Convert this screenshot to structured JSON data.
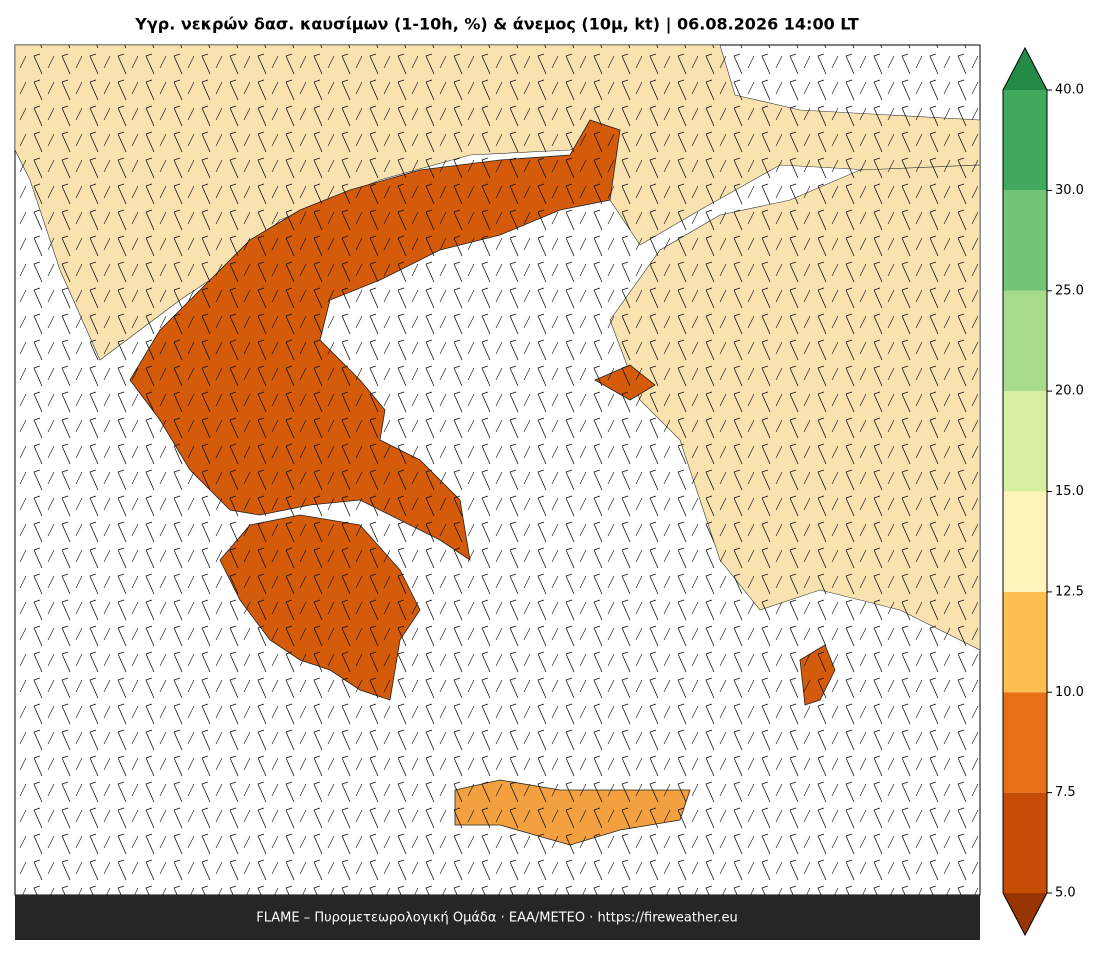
{
  "header": {
    "title": "Υγρ. νεκρών δασ. καυσίμων (1-10h, %) & άνεμος (10μ, kt)  |  06.08.2026 14:00 LT"
  },
  "colorbar": {
    "ticks": [
      {
        "value": 5,
        "label": "5.0"
      },
      7.5,
      {
        "value": 10,
        "label": "10.0"
      },
      12.5,
      {
        "value": 15,
        "label": "15.0"
      },
      {
        "value": 20,
        "label": "20.0"
      },
      {
        "value": 25,
        "label": "25.0"
      },
      {
        "value": 30,
        "label": "30.0"
      },
      {
        "value": 40,
        "label": "40.0"
      }
    ],
    "colors": [
      "#c74c05",
      "#e96f16",
      "#fdc050",
      "#fff5bb",
      "#d8eea0",
      "#a8dc8a",
      "#74c476",
      "#41ab5d"
    ],
    "under_color": "#993404",
    "over_color": "#238b45"
  },
  "footer": {
    "text": "FLAME – Πυρομετεωρολογική Ομάδα · ΕΑΑ/METEO · https://fireweather.eu"
  }
}
